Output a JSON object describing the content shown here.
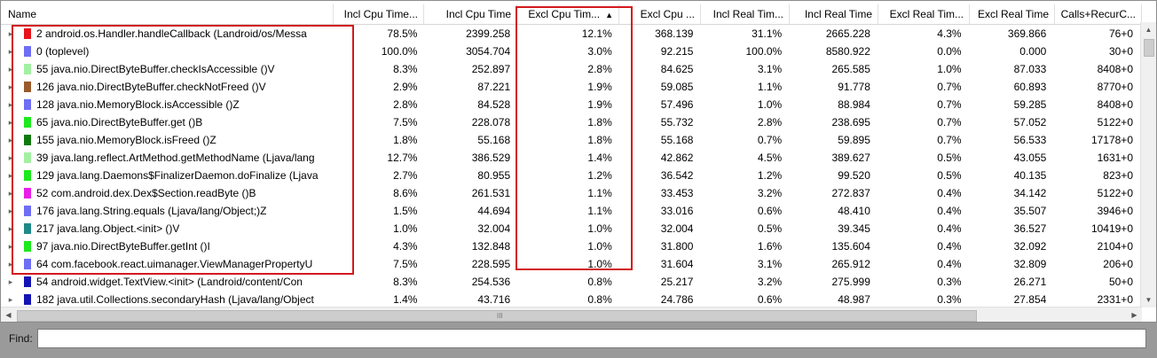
{
  "columns": [
    {
      "label": "Name",
      "key": "name",
      "sorted": false
    },
    {
      "label": "Incl Cpu Time...",
      "key": "incl_cpu_pct",
      "sorted": false
    },
    {
      "label": "Incl Cpu Time",
      "key": "incl_cpu",
      "sorted": false
    },
    {
      "label": "Excl Cpu Tim...",
      "key": "excl_cpu_pct",
      "sorted": true,
      "sort_glyph": "▲"
    },
    {
      "label": "Excl Cpu ...",
      "key": "excl_cpu",
      "sorted": false
    },
    {
      "label": "Incl Real Tim...",
      "key": "incl_real_pct",
      "sorted": false
    },
    {
      "label": "Incl Real Time",
      "key": "incl_real",
      "sorted": false
    },
    {
      "label": "Excl Real Tim...",
      "key": "excl_real_pct",
      "sorted": false
    },
    {
      "label": "Excl Real Time",
      "key": "excl_real",
      "sorted": false
    },
    {
      "label": "Calls+RecurC...",
      "key": "calls",
      "sorted": false
    }
  ],
  "rows": [
    {
      "expander": "▸",
      "color": "#e8141c",
      "name": "2 android.os.Handler.handleCallback (Landroid/os/Messa",
      "incl_cpu_pct": "78.5%",
      "incl_cpu": "2399.258",
      "excl_cpu_pct": "12.1%",
      "excl_cpu": "368.139",
      "incl_real_pct": "31.1%",
      "incl_real": "2665.228",
      "excl_real_pct": "4.3%",
      "excl_real": "369.866",
      "calls": "76+0"
    },
    {
      "expander": "▸",
      "color": "#6e6ef5",
      "name": "0 (toplevel)",
      "incl_cpu_pct": "100.0%",
      "incl_cpu": "3054.704",
      "excl_cpu_pct": "3.0%",
      "excl_cpu": "92.215",
      "incl_real_pct": "100.0%",
      "incl_real": "8580.922",
      "excl_real_pct": "0.0%",
      "excl_real": "0.000",
      "calls": "30+0"
    },
    {
      "expander": "▸",
      "color": "#a3f0a3",
      "name": "55 java.nio.DirectByteBuffer.checkIsAccessible ()V",
      "incl_cpu_pct": "8.3%",
      "incl_cpu": "252.897",
      "excl_cpu_pct": "2.8%",
      "excl_cpu": "84.625",
      "incl_real_pct": "3.1%",
      "incl_real": "265.585",
      "excl_real_pct": "1.0%",
      "excl_real": "87.033",
      "calls": "8408+0"
    },
    {
      "expander": "▸",
      "color": "#9a5a2a",
      "name": "126 java.nio.DirectByteBuffer.checkNotFreed ()V",
      "incl_cpu_pct": "2.9%",
      "incl_cpu": "87.221",
      "excl_cpu_pct": "1.9%",
      "excl_cpu": "59.085",
      "incl_real_pct": "1.1%",
      "incl_real": "91.778",
      "excl_real_pct": "0.7%",
      "excl_real": "60.893",
      "calls": "8770+0"
    },
    {
      "expander": "▸",
      "color": "#6e6ef5",
      "name": "128 java.nio.MemoryBlock.isAccessible ()Z",
      "incl_cpu_pct": "2.8%",
      "incl_cpu": "84.528",
      "excl_cpu_pct": "1.9%",
      "excl_cpu": "57.496",
      "incl_real_pct": "1.0%",
      "incl_real": "88.984",
      "excl_real_pct": "0.7%",
      "excl_real": "59.285",
      "calls": "8408+0"
    },
    {
      "expander": "▸",
      "color": "#1ee81e",
      "name": "65 java.nio.DirectByteBuffer.get ()B",
      "incl_cpu_pct": "7.5%",
      "incl_cpu": "228.078",
      "excl_cpu_pct": "1.8%",
      "excl_cpu": "55.732",
      "incl_real_pct": "2.8%",
      "incl_real": "238.695",
      "excl_real_pct": "0.7%",
      "excl_real": "57.052",
      "calls": "5122+0"
    },
    {
      "expander": "▸",
      "color": "#0e7a0e",
      "name": "155 java.nio.MemoryBlock.isFreed ()Z",
      "incl_cpu_pct": "1.8%",
      "incl_cpu": "55.168",
      "excl_cpu_pct": "1.8%",
      "excl_cpu": "55.168",
      "incl_real_pct": "0.7%",
      "incl_real": "59.895",
      "excl_real_pct": "0.7%",
      "excl_real": "56.533",
      "calls": "17178+0"
    },
    {
      "expander": "▸",
      "color": "#a3f0a3",
      "name": "39 java.lang.reflect.ArtMethod.getMethodName (Ljava/lang",
      "incl_cpu_pct": "12.7%",
      "incl_cpu": "386.529",
      "excl_cpu_pct": "1.4%",
      "excl_cpu": "42.862",
      "incl_real_pct": "4.5%",
      "incl_real": "389.627",
      "excl_real_pct": "0.5%",
      "excl_real": "43.055",
      "calls": "1631+0"
    },
    {
      "expander": "▸",
      "color": "#1ee81e",
      "name": "129 java.lang.Daemons$FinalizerDaemon.doFinalize (Ljava",
      "incl_cpu_pct": "2.7%",
      "incl_cpu": "80.955",
      "excl_cpu_pct": "1.2%",
      "excl_cpu": "36.542",
      "incl_real_pct": "1.2%",
      "incl_real": "99.520",
      "excl_real_pct": "0.5%",
      "excl_real": "40.135",
      "calls": "823+0"
    },
    {
      "expander": "▸",
      "color": "#e81ee8",
      "name": "52 com.android.dex.Dex$Section.readByte ()B",
      "incl_cpu_pct": "8.6%",
      "incl_cpu": "261.531",
      "excl_cpu_pct": "1.1%",
      "excl_cpu": "33.453",
      "incl_real_pct": "3.2%",
      "incl_real": "272.837",
      "excl_real_pct": "0.4%",
      "excl_real": "34.142",
      "calls": "5122+0"
    },
    {
      "expander": "▸",
      "color": "#6e6ef5",
      "name": "176 java.lang.String.equals (Ljava/lang/Object;)Z",
      "incl_cpu_pct": "1.5%",
      "incl_cpu": "44.694",
      "excl_cpu_pct": "1.1%",
      "excl_cpu": "33.016",
      "incl_real_pct": "0.6%",
      "incl_real": "48.410",
      "excl_real_pct": "0.4%",
      "excl_real": "35.507",
      "calls": "3946+0"
    },
    {
      "expander": "▸",
      "color": "#1e8a8a",
      "name": "217 java.lang.Object.<init> ()V",
      "incl_cpu_pct": "1.0%",
      "incl_cpu": "32.004",
      "excl_cpu_pct": "1.0%",
      "excl_cpu": "32.004",
      "incl_real_pct": "0.5%",
      "incl_real": "39.345",
      "excl_real_pct": "0.4%",
      "excl_real": "36.527",
      "calls": "10419+0"
    },
    {
      "expander": "▸",
      "color": "#1ee81e",
      "name": "97 java.nio.DirectByteBuffer.getInt ()I",
      "incl_cpu_pct": "4.3%",
      "incl_cpu": "132.848",
      "excl_cpu_pct": "1.0%",
      "excl_cpu": "31.800",
      "incl_real_pct": "1.6%",
      "incl_real": "135.604",
      "excl_real_pct": "0.4%",
      "excl_real": "32.092",
      "calls": "2104+0"
    },
    {
      "expander": "▸",
      "color": "#6e6ef5",
      "name": "64 com.facebook.react.uimanager.ViewManagerPropertyU",
      "incl_cpu_pct": "7.5%",
      "incl_cpu": "228.595",
      "excl_cpu_pct": "1.0%",
      "excl_cpu": "31.604",
      "incl_real_pct": "3.1%",
      "incl_real": "265.912",
      "excl_real_pct": "0.4%",
      "excl_real": "32.809",
      "calls": "206+0"
    },
    {
      "expander": "▸",
      "color": "#1414b4",
      "name": "54 android.widget.TextView.<init> (Landroid/content/Con",
      "incl_cpu_pct": "8.3%",
      "incl_cpu": "254.536",
      "excl_cpu_pct": "0.8%",
      "excl_cpu": "25.217",
      "incl_real_pct": "3.2%",
      "incl_real": "275.999",
      "excl_real_pct": "0.3%",
      "excl_real": "26.271",
      "calls": "50+0"
    },
    {
      "expander": "▸",
      "color": "#1414b4",
      "name": "182 java.util.Collections.secondaryHash (Ljava/lang/Object",
      "incl_cpu_pct": "1.4%",
      "incl_cpu": "43.716",
      "excl_cpu_pct": "0.8%",
      "excl_cpu": "24.786",
      "incl_real_pct": "0.6%",
      "incl_real": "48.987",
      "excl_real_pct": "0.3%",
      "excl_real": "27.854",
      "calls": "2331+0"
    }
  ],
  "scrollbars": {
    "up": "▲",
    "down": "▼",
    "left": "◀",
    "right": "▶",
    "grip": "III"
  },
  "find": {
    "label": "Find:",
    "value": "",
    "placeholder": ""
  },
  "highlight_color": "#d2191d"
}
